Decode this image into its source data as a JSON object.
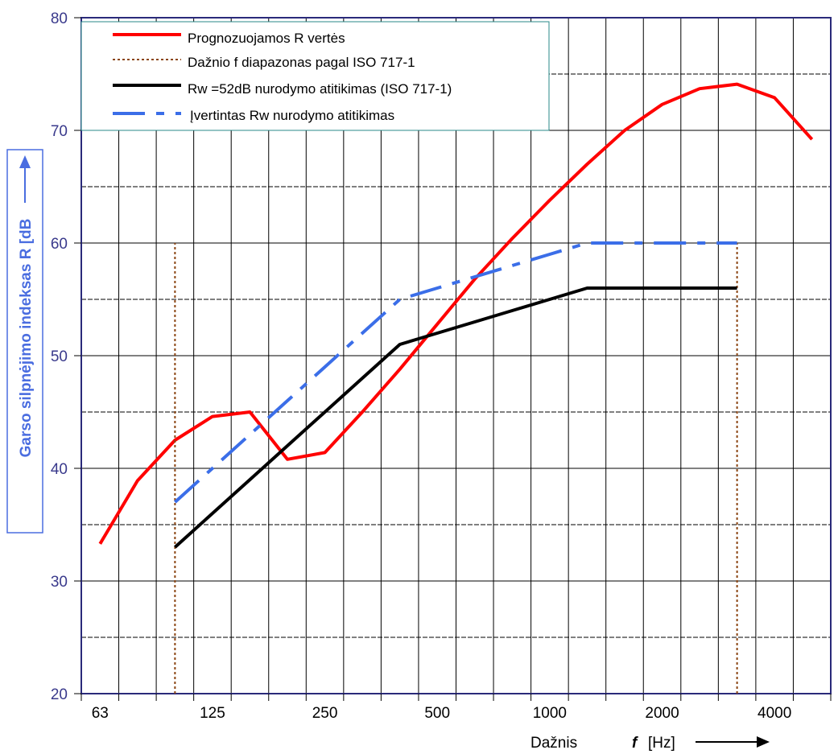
{
  "chart_data": {
    "type": "line",
    "x": [
      63,
      80,
      100,
      125,
      160,
      200,
      250,
      315,
      400,
      500,
      630,
      800,
      1000,
      1250,
      1600,
      2000,
      2500,
      3150,
      4000,
      5000
    ],
    "xticks": [
      "63",
      "125",
      "250",
      "500",
      "1000",
      "2000",
      "4000"
    ],
    "xlabel_prefix": "Dažnis",
    "xlabel_var": "f",
    "xlabel_unit": "[Hz]",
    "ylabel": "Garso silpnėjimo indeksas R [dB",
    "ylim": [
      20,
      80
    ],
    "yticks": [
      "20",
      "30",
      "40",
      "50",
      "60",
      "70",
      "80"
    ],
    "grid": true,
    "legend_position": "top-left",
    "series": [
      {
        "name": "Prognozuojamos R vertės",
        "color": "#ff0000",
        "style": "solid",
        "x": [
          63,
          80,
          100,
          125,
          160,
          200,
          250,
          315,
          400,
          500,
          630,
          800,
          1000,
          1250,
          1600,
          2000,
          2500,
          3150,
          4000,
          5000
        ],
        "y": [
          33.3,
          38.9,
          42.5,
          44.6,
          45.0,
          40.8,
          41.4,
          45.0,
          48.8,
          52.8,
          56.8,
          60.4,
          63.8,
          67.0,
          70.0,
          72.3,
          73.7,
          74.1,
          72.9,
          69.2
        ]
      },
      {
        "name": "Dažnio f diapazonas pagal  ISO 717-1",
        "color": "#8b4513",
        "style": "dotted-vertical",
        "x": [
          100,
          3150
        ],
        "y": [
          20,
          60
        ]
      },
      {
        "name": "Rw =52dB nurodymo atitikimas (ISO 717-1)",
        "color": "#000000",
        "style": "solid",
        "x": [
          100,
          125,
          160,
          200,
          250,
          315,
          400,
          500,
          630,
          800,
          1000,
          1250,
          1600,
          2000,
          2500,
          3150
        ],
        "y": [
          33,
          36,
          39,
          42,
          45,
          48,
          51,
          52,
          53,
          54,
          55,
          56,
          56,
          56,
          56,
          56
        ]
      },
      {
        "name": "Įvertintas Rw nurodymo atitikimas",
        "color": "#3b6ee8",
        "style": "dashdot",
        "x": [
          100,
          125,
          160,
          200,
          250,
          315,
          400,
          500,
          630,
          800,
          1000,
          1250,
          1600,
          2000,
          2500,
          3150
        ],
        "y": [
          37,
          40,
          43,
          46,
          49,
          52,
          55,
          56,
          57,
          58,
          59,
          60,
          60,
          60,
          60,
          60
        ]
      }
    ]
  }
}
